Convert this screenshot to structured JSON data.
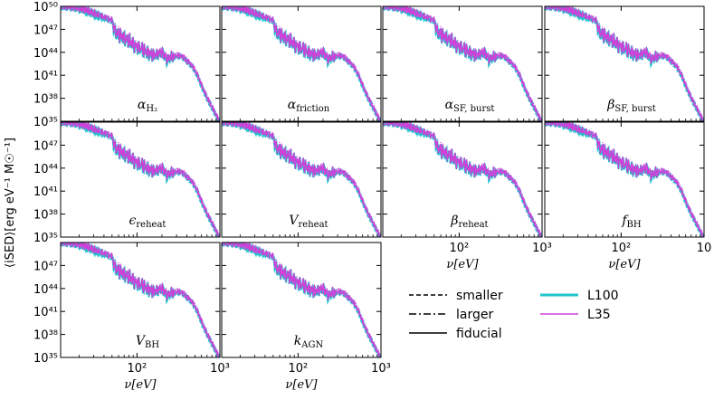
{
  "chart_data": {
    "type": "line",
    "title": "",
    "ylabel": "⟨iSED⟩[erg eV⁻¹ M☉⁻¹]",
    "xlabel": "ν[eV]",
    "x_scale": "log",
    "y_scale": "log",
    "xlim": [
      12,
      1000
    ],
    "ylim": [
      1e+35,
      1e+50
    ],
    "y_tick_labels": [
      "10⁵⁰",
      "10⁴⁷",
      "10⁴⁴",
      "10⁴¹",
      "10³⁸",
      "10³⁵"
    ],
    "y_tick_values": [
      1e+50,
      1e+47,
      1e+44,
      1e+41,
      1e+38,
      1e+35
    ],
    "x_tick_labels": [
      "10²",
      "10³"
    ],
    "x_tick_labels_last_column": [
      "10²",
      "10"
    ],
    "x_tick_values": [
      100,
      1000
    ],
    "sed_shape_log10": {
      "nu": [
        12,
        15,
        20,
        25,
        30,
        40,
        50,
        55,
        60,
        70,
        80,
        90,
        100,
        120,
        140,
        160,
        180,
        200,
        230,
        260,
        300,
        350,
        400,
        450,
        500,
        550,
        600,
        700,
        800,
        900,
        1000
      ],
      "l100": [
        49.9,
        49.8,
        49.6,
        49.35,
        49.0,
        48.5,
        48.1,
        46.5,
        46.3,
        45.8,
        45.4,
        45.0,
        44.7,
        44.2,
        43.8,
        43.5,
        43.7,
        44.0,
        43.0,
        43.3,
        43.5,
        43.4,
        42.8,
        42.3,
        41.6,
        40.7,
        39.6,
        38.0,
        36.8,
        35.7,
        34.8
      ],
      "l35_offset": 0.12
    },
    "panels": [
      {
        "label": "α_H₂",
        "label_main": "α",
        "label_sub": "H₂",
        "variants": [
          "smaller",
          "larger",
          "fiducial"
        ]
      },
      {
        "label": "α_friction",
        "label_main": "α",
        "label_sub": "friction",
        "variants": [
          "smaller",
          "larger",
          "fiducial"
        ]
      },
      {
        "label": "α_SF, burst",
        "label_main": "α",
        "label_sub": "SF, burst",
        "variants": [
          "smaller",
          "larger",
          "fiducial"
        ]
      },
      {
        "label": "β_SF, burst",
        "label_main": "β",
        "label_sub": "SF, burst",
        "variants": [
          "smaller",
          "larger",
          "fiducial"
        ]
      },
      {
        "label": "ε_reheat",
        "label_main": "ϵ",
        "label_sub": "reheat",
        "variants": [
          "smaller",
          "larger",
          "fiducial"
        ]
      },
      {
        "label": "V_reheat",
        "label_main": "V",
        "label_sub": "reheat",
        "variants": [
          "smaller",
          "larger",
          "fiducial"
        ]
      },
      {
        "label": "β_reheat",
        "label_main": "β",
        "label_sub": "reheat",
        "variants": [
          "smaller",
          "larger",
          "fiducial"
        ]
      },
      {
        "label": "f_BH",
        "label_main": "f",
        "label_sub": "BH",
        "variants": [
          "smaller",
          "larger",
          "fiducial"
        ]
      },
      {
        "label": "V_BH",
        "label_main": "V",
        "label_sub": "BH",
        "variants": [
          "smaller",
          "larger",
          "fiducial"
        ]
      },
      {
        "label": "k_AGN",
        "label_main": "k",
        "label_sub": "AGN",
        "variants": [
          "smaller",
          "larger",
          "fiducial"
        ]
      }
    ],
    "legend": {
      "placement": "lower-right",
      "linestyles": [
        {
          "label": "smaller",
          "style": "dashed"
        },
        {
          "label": "larger",
          "style": "dashdot"
        },
        {
          "label": "fiducial",
          "style": "solid"
        }
      ],
      "series": [
        {
          "label": "L100",
          "color": "#20c4cc"
        },
        {
          "label": "L35",
          "color": "#d040d8"
        }
      ]
    }
  }
}
